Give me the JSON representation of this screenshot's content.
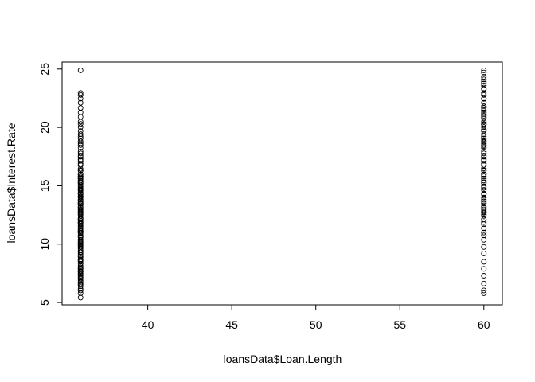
{
  "chart_data": {
    "type": "scatter",
    "title": "",
    "xlabel": "loansData$Loan.Length",
    "ylabel": "loansData$Interest.Rate",
    "xlim": [
      34.9,
      61.1
    ],
    "ylim": [
      4.8,
      25.6
    ],
    "xticks": [
      40,
      45,
      50,
      55,
      60
    ],
    "xtick_labels": [
      "40",
      "45",
      "50",
      "55",
      "60"
    ],
    "yticks": [
      5,
      10,
      15,
      20,
      25
    ],
    "ytick_labels": [
      "5",
      "10",
      "15",
      "20",
      "25"
    ],
    "marker": "open-circle",
    "grid": false,
    "series": [
      {
        "name": "36",
        "x": 36,
        "y": [
          5.42,
          5.79,
          6.03,
          6.17,
          6.39,
          6.54,
          6.62,
          6.76,
          6.91,
          7.05,
          7.14,
          7.29,
          7.43,
          7.51,
          7.62,
          7.66,
          7.74,
          7.88,
          7.9,
          8.0,
          8.12,
          8.32,
          8.49,
          8.59,
          8.63,
          8.7,
          8.9,
          8.94,
          9.07,
          9.2,
          9.32,
          9.45,
          9.63,
          9.76,
          9.88,
          9.91,
          10.0,
          10.08,
          10.16,
          10.25,
          10.37,
          10.38,
          10.59,
          10.65,
          10.75,
          10.95,
          10.99,
          11.11,
          11.12,
          11.14,
          11.26,
          11.36,
          11.49,
          11.58,
          11.71,
          11.78,
          11.86,
          11.89,
          11.99,
          12.12,
          12.18,
          12.23,
          12.42,
          12.53,
          12.61,
          12.69,
          12.73,
          12.84,
          12.92,
          12.98,
          13.11,
          13.16,
          13.23,
          13.43,
          13.48,
          13.49,
          13.57,
          13.67,
          13.79,
          13.8,
          13.99,
          14.09,
          14.11,
          14.27,
          14.33,
          14.42,
          14.59,
          14.65,
          14.74,
          14.82,
          14.96,
          15.05,
          15.21,
          15.23,
          15.31,
          15.33,
          15.45,
          15.58,
          15.62,
          15.7,
          15.8,
          15.81,
          15.96,
          16.0,
          16.29,
          16.32,
          16.45,
          16.77,
          16.89,
          17.14,
          17.27,
          17.49,
          17.58,
          17.77,
          17.93,
          18.25,
          18.49,
          18.64,
          18.79,
          19.05,
          19.22,
          19.42,
          19.69,
          20.03,
          20.3,
          20.49,
          20.9,
          21.28,
          21.67,
          22.11,
          22.47,
          22.78,
          22.95,
          24.89
        ]
      },
      {
        "name": "60",
        "x": 60,
        "y": [
          5.79,
          6.03,
          6.62,
          7.29,
          7.88,
          8.49,
          9.2,
          9.76,
          10.37,
          10.75,
          10.99,
          11.36,
          11.71,
          11.89,
          12.12,
          12.42,
          12.53,
          12.69,
          12.73,
          12.84,
          12.98,
          13.11,
          13.23,
          13.49,
          13.67,
          13.8,
          13.99,
          14.27,
          14.33,
          14.65,
          14.82,
          14.96,
          15.23,
          15.31,
          15.45,
          15.62,
          15.81,
          15.96,
          16.0,
          16.29,
          16.32,
          16.49,
          16.77,
          16.89,
          17.14,
          17.27,
          17.49,
          17.58,
          17.77,
          17.93,
          18.25,
          18.39,
          18.49,
          18.62,
          18.75,
          18.79,
          18.92,
          19.05,
          19.22,
          19.42,
          19.69,
          19.79,
          20.03,
          20.25,
          20.3,
          20.49,
          20.77,
          20.89,
          21.0,
          21.14,
          21.28,
          21.48,
          21.67,
          21.82,
          22.11,
          22.45,
          22.47,
          22.78,
          22.95,
          23.28,
          23.33,
          23.59,
          23.76,
          23.91,
          24.11,
          24.33,
          24.7,
          24.89
        ]
      }
    ]
  }
}
